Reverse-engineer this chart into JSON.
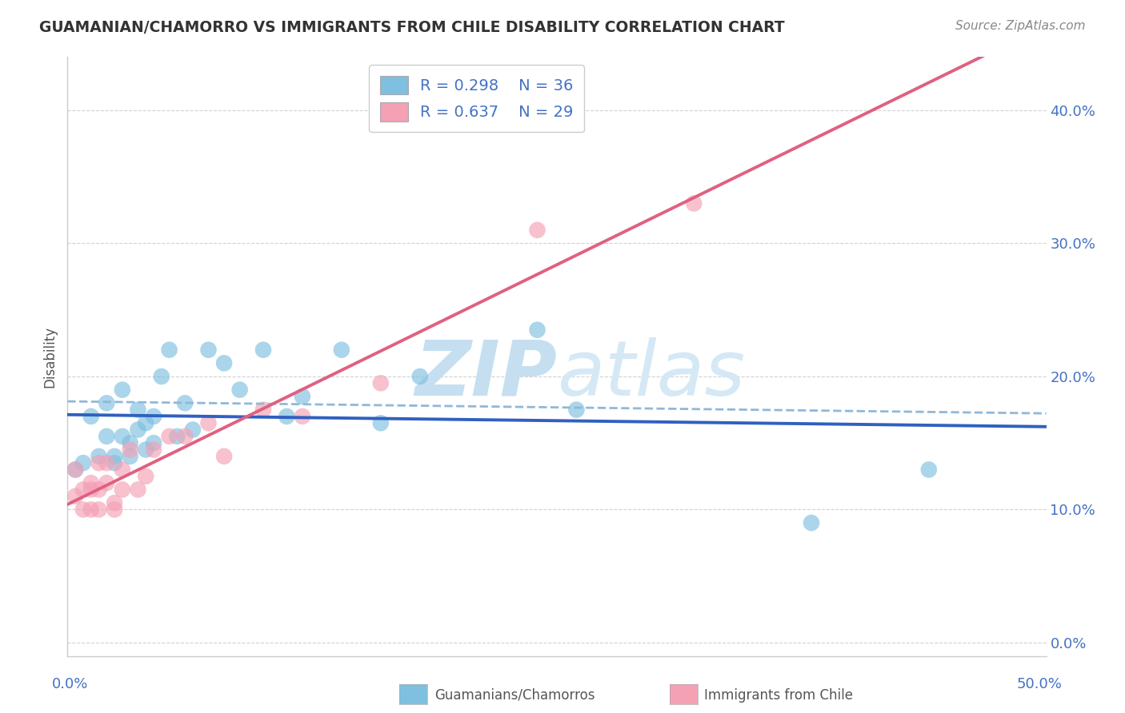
{
  "title": "GUAMANIAN/CHAMORRO VS IMMIGRANTS FROM CHILE DISABILITY CORRELATION CHART",
  "source": "Source: ZipAtlas.com",
  "ylabel": "Disability",
  "legend_blue_r": "R = 0.298",
  "legend_blue_n": "N = 36",
  "legend_pink_r": "R = 0.637",
  "legend_pink_n": "N = 29",
  "blue_scatter_x": [
    0.001,
    0.002,
    0.003,
    0.004,
    0.005,
    0.005,
    0.006,
    0.006,
    0.007,
    0.007,
    0.008,
    0.008,
    0.009,
    0.009,
    0.01,
    0.01,
    0.011,
    0.011,
    0.012,
    0.013,
    0.014,
    0.015,
    0.016,
    0.018,
    0.02,
    0.022,
    0.025,
    0.028,
    0.03,
    0.035,
    0.04,
    0.045,
    0.06,
    0.065,
    0.095,
    0.11
  ],
  "blue_scatter_y": [
    0.13,
    0.135,
    0.17,
    0.14,
    0.155,
    0.18,
    0.135,
    0.14,
    0.155,
    0.19,
    0.14,
    0.15,
    0.16,
    0.175,
    0.145,
    0.165,
    0.15,
    0.17,
    0.2,
    0.22,
    0.155,
    0.18,
    0.16,
    0.22,
    0.21,
    0.19,
    0.22,
    0.17,
    0.185,
    0.22,
    0.165,
    0.2,
    0.235,
    0.175,
    0.09,
    0.13
  ],
  "pink_scatter_x": [
    0.001,
    0.001,
    0.002,
    0.002,
    0.003,
    0.003,
    0.003,
    0.004,
    0.004,
    0.004,
    0.005,
    0.005,
    0.006,
    0.006,
    0.007,
    0.007,
    0.008,
    0.009,
    0.01,
    0.011,
    0.013,
    0.015,
    0.018,
    0.02,
    0.025,
    0.03,
    0.04,
    0.06,
    0.08
  ],
  "pink_scatter_y": [
    0.13,
    0.11,
    0.1,
    0.115,
    0.1,
    0.115,
    0.12,
    0.1,
    0.115,
    0.135,
    0.12,
    0.135,
    0.1,
    0.105,
    0.115,
    0.13,
    0.145,
    0.115,
    0.125,
    0.145,
    0.155,
    0.155,
    0.165,
    0.14,
    0.175,
    0.17,
    0.195,
    0.31,
    0.33
  ],
  "blue_color": "#7fbfdf",
  "pink_color": "#f4a0b5",
  "blue_line_color": "#3060c0",
  "pink_line_color": "#e06080",
  "dashed_line_color": "#90b8d8",
  "watermark_zip_color": "#c8dff0",
  "watermark_atlas_color": "#c8dff0",
  "background_color": "#ffffff",
  "xlim": [
    0.0,
    0.125
  ],
  "ylim": [
    -0.01,
    0.44
  ],
  "xtick_positions": [
    0.0,
    0.025,
    0.05,
    0.075,
    0.1,
    0.125
  ],
  "ytick_positions": [
    0.0,
    0.1,
    0.2,
    0.3,
    0.4
  ],
  "ytick_labels": [
    "0.0%",
    "10.0%",
    "20.0%",
    "30.0%",
    "40.0%"
  ]
}
